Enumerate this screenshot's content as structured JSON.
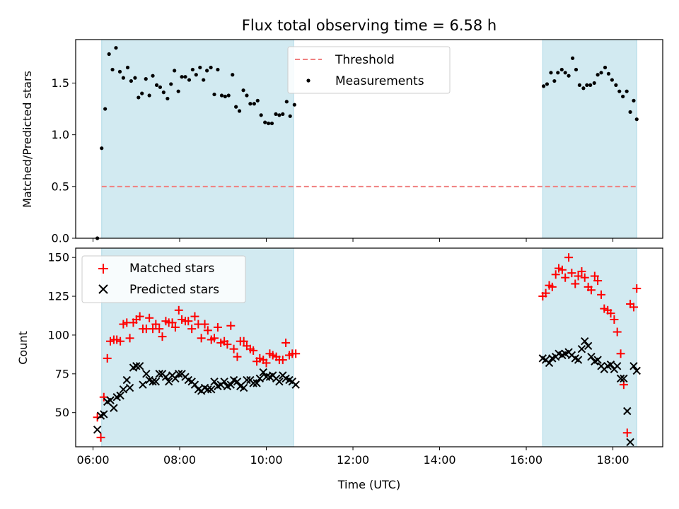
{
  "chart_data": {
    "type": "scatter",
    "title": "Flux total observing time = 6.58 h",
    "xlabel": "Time (UTC)",
    "x_ticks": [
      "06:00",
      "08:00",
      "10:00",
      "12:00",
      "14:00",
      "16:00",
      "18:00"
    ],
    "x_tick_values": [
      6,
      8,
      10,
      12,
      14,
      16,
      18
    ],
    "xlim": [
      5.6,
      19.15
    ],
    "shaded_intervals": [
      [
        6.2,
        10.63
      ],
      [
        16.38,
        18.55
      ]
    ],
    "shade_color": "#add8e6",
    "panels": [
      {
        "ylabel": "Matched/Predicted stars",
        "ylim": [
          0,
          1.92
        ],
        "y_ticks": [
          "0.0",
          "0.5",
          "1.0",
          "1.5"
        ],
        "y_tick_values": [
          0,
          0.5,
          1.0,
          1.5
        ],
        "legend": [
          "Threshold",
          "Measurements"
        ],
        "legend_position": "upper-center",
        "threshold": {
          "name": "Threshold",
          "y": 0.5,
          "x_range": [
            6.2,
            18.55
          ],
          "color": "#f08080",
          "style": "dashed"
        },
        "measurements": {
          "name": "Measurements",
          "color": "#000000",
          "x": [
            6.1,
            6.2,
            6.28,
            6.37,
            6.45,
            6.53,
            6.62,
            6.7,
            6.8,
            6.88,
            6.97,
            7.05,
            7.13,
            7.22,
            7.3,
            7.38,
            7.47,
            7.55,
            7.63,
            7.72,
            7.8,
            7.88,
            7.97,
            8.05,
            8.13,
            8.22,
            8.3,
            8.38,
            8.47,
            8.55,
            8.63,
            8.72,
            8.8,
            8.88,
            8.97,
            9.05,
            9.13,
            9.22,
            9.3,
            9.38,
            9.47,
            9.55,
            9.63,
            9.72,
            9.8,
            9.88,
            9.97,
            10.05,
            10.13,
            10.22,
            10.3,
            10.38,
            10.47,
            10.55,
            10.65,
            16.4,
            16.48,
            16.57,
            16.65,
            16.73,
            16.82,
            16.9,
            16.98,
            17.07,
            17.15,
            17.23,
            17.32,
            17.4,
            17.48,
            17.57,
            17.65,
            17.73,
            17.82,
            17.9,
            17.98,
            18.07,
            18.15,
            18.23,
            18.32,
            18.4,
            18.48,
            18.55
          ],
          "y": [
            0.0,
            0.87,
            1.25,
            1.78,
            1.63,
            1.84,
            1.61,
            1.55,
            1.65,
            1.52,
            1.55,
            1.36,
            1.4,
            1.54,
            1.38,
            1.57,
            1.48,
            1.46,
            1.41,
            1.35,
            1.49,
            1.62,
            1.42,
            1.56,
            1.56,
            1.53,
            1.63,
            1.58,
            1.65,
            1.53,
            1.62,
            1.65,
            1.39,
            1.63,
            1.38,
            1.37,
            1.38,
            1.58,
            1.27,
            1.23,
            1.43,
            1.38,
            1.3,
            1.3,
            1.33,
            1.19,
            1.12,
            1.11,
            1.11,
            1.2,
            1.19,
            1.2,
            1.32,
            1.18,
            1.29,
            1.47,
            1.49,
            1.6,
            1.52,
            1.6,
            1.63,
            1.6,
            1.57,
            1.74,
            1.63,
            1.48,
            1.45,
            1.48,
            1.48,
            1.5,
            1.58,
            1.6,
            1.65,
            1.59,
            1.53,
            1.48,
            1.42,
            1.37,
            1.42,
            1.22,
            1.33,
            1.15
          ]
        }
      },
      {
        "ylabel": "Count",
        "ylim": [
          28,
          156
        ],
        "y_ticks": [
          "50",
          "75",
          "100",
          "125",
          "150"
        ],
        "y_tick_values": [
          50,
          75,
          100,
          125,
          150
        ],
        "legend": [
          "Matched stars",
          "Predicted stars"
        ],
        "legend_position": "upper-left",
        "series": [
          {
            "name": "Matched stars",
            "marker": "plus",
            "color": "#ff0000",
            "x": [
              6.1,
              6.18,
              6.25,
              6.33,
              6.4,
              6.48,
              6.55,
              6.63,
              6.7,
              6.78,
              6.85,
              6.93,
              7.0,
              7.08,
              7.15,
              7.23,
              7.3,
              7.38,
              7.45,
              7.53,
              7.6,
              7.68,
              7.75,
              7.83,
              7.9,
              7.98,
              8.05,
              8.13,
              8.2,
              8.28,
              8.35,
              8.43,
              8.5,
              8.58,
              8.65,
              8.73,
              8.8,
              8.88,
              8.95,
              9.03,
              9.1,
              9.18,
              9.25,
              9.33,
              9.4,
              9.48,
              9.55,
              9.63,
              9.7,
              9.78,
              9.85,
              9.93,
              10.0,
              10.08,
              10.15,
              10.23,
              10.3,
              10.38,
              10.45,
              10.53,
              10.6,
              10.68,
              16.38,
              16.45,
              16.53,
              16.6,
              16.68,
              16.75,
              16.83,
              16.9,
              16.98,
              17.05,
              17.13,
              17.2,
              17.28,
              17.35,
              17.43,
              17.5,
              17.58,
              17.65,
              17.73,
              17.8,
              17.88,
              17.95,
              18.03,
              18.1,
              18.18,
              18.25,
              18.33,
              18.4,
              18.48,
              18.55
            ],
            "y": [
              47,
              34,
              60,
              85,
              96,
              97,
              97,
              96,
              107,
              108,
              98,
              108,
              110,
              112,
              104,
              104,
              111,
              104,
              107,
              104,
              99,
              109,
              108,
              108,
              105,
              116,
              110,
              109,
              109,
              104,
              112,
              107,
              98,
              107,
              103,
              97,
              98,
              105,
              95,
              96,
              94,
              106,
              91,
              86,
              96,
              96,
              93,
              91,
              90,
              83,
              85,
              84,
              82,
              88,
              87,
              86,
              84,
              84,
              95,
              87,
              88,
              88,
              125,
              127,
              132,
              131,
              139,
              143,
              142,
              137,
              150,
              140,
              133,
              138,
              141,
              137,
              131,
              129,
              138,
              135,
              126,
              117,
              116,
              114,
              110,
              102,
              88,
              68,
              37,
              120,
              118,
              130
            ],
            "__note_last": "trailing order mirrors scatter; final three points sorted by x in rendering"
          },
          {
            "name": "Predicted stars",
            "marker": "cross",
            "color": "#000000",
            "x": [
              6.1,
              6.18,
              6.25,
              6.33,
              6.4,
              6.48,
              6.55,
              6.63,
              6.7,
              6.78,
              6.85,
              6.93,
              7.0,
              7.08,
              7.15,
              7.23,
              7.3,
              7.38,
              7.45,
              7.53,
              7.6,
              7.68,
              7.75,
              7.83,
              7.9,
              7.98,
              8.05,
              8.13,
              8.2,
              8.28,
              8.35,
              8.43,
              8.5,
              8.58,
              8.65,
              8.73,
              8.8,
              8.88,
              8.95,
              9.03,
              9.1,
              9.18,
              9.25,
              9.33,
              9.4,
              9.48,
              9.55,
              9.63,
              9.7,
              9.78,
              9.85,
              9.93,
              10.0,
              10.08,
              10.15,
              10.23,
              10.3,
              10.38,
              10.45,
              10.53,
              10.6,
              10.68,
              16.38,
              16.45,
              16.53,
              16.6,
              16.68,
              16.75,
              16.83,
              16.9,
              16.98,
              17.05,
              17.13,
              17.2,
              17.28,
              17.35,
              17.43,
              17.5,
              17.58,
              17.65,
              17.73,
              17.8,
              17.88,
              17.95,
              18.03,
              18.1,
              18.18,
              18.25,
              18.33,
              18.4,
              18.48,
              18.55
            ],
            "y": [
              39,
              48,
              49,
              57,
              58,
              53,
              60,
              61,
              65,
              71,
              66,
              79,
              80,
              80,
              68,
              75,
              71,
              70,
              70,
              75,
              75,
              73,
              70,
              74,
              72,
              75,
              75,
              73,
              71,
              70,
              68,
              65,
              64,
              66,
              65,
              65,
              70,
              67,
              68,
              70,
              67,
              68,
              71,
              70,
              67,
              66,
              71,
              71,
              69,
              69,
              72,
              76,
              73,
              73,
              74,
              72,
              70,
              74,
              72,
              71,
              70,
              68,
              85,
              84,
              82,
              85,
              86,
              88,
              87,
              88,
              89,
              87,
              85,
              84,
              91,
              96,
              93,
              86,
              83,
              84,
              80,
              78,
              80,
              81,
              78,
              80,
              72,
              72,
              51,
              31,
              80,
              77
            ]
          }
        ]
      }
    ]
  }
}
